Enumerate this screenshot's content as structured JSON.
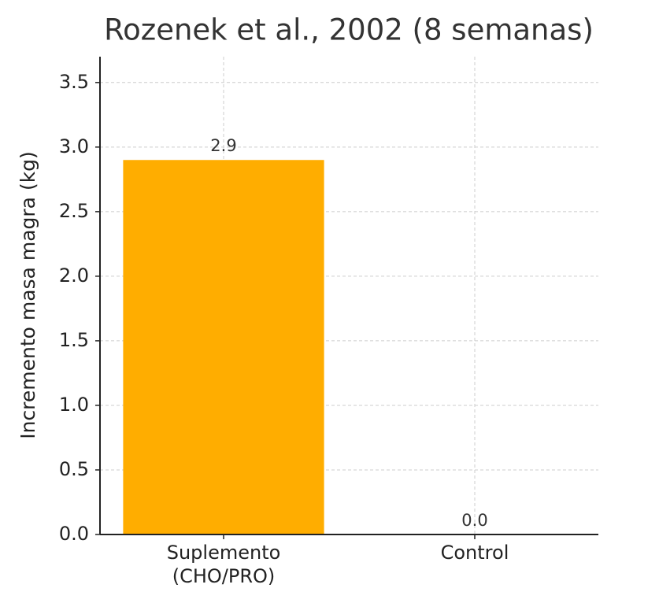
{
  "chart_data": {
    "type": "bar",
    "title": "Rozenek et al., 2002 (8 semanas)",
    "y_label": "Incremento masa magra (kg)",
    "categories": [
      "Suplemento\n(CHO/PRO)",
      "Control"
    ],
    "values": [
      2.9,
      0.0
    ],
    "value_labels": [
      "2.9",
      "0.0"
    ],
    "color": "#ffad00",
    "ylim": [
      0,
      3.7
    ],
    "yticks": [
      {
        "value": 0,
        "label": "0.0"
      },
      0.5,
      {
        "value": 1,
        "label": "1.0"
      },
      1.5,
      {
        "value": 2,
        "label": "2.0"
      },
      2.5,
      {
        "value": 3,
        "label": "3.0"
      },
      3.5
    ],
    "grid": true
  }
}
